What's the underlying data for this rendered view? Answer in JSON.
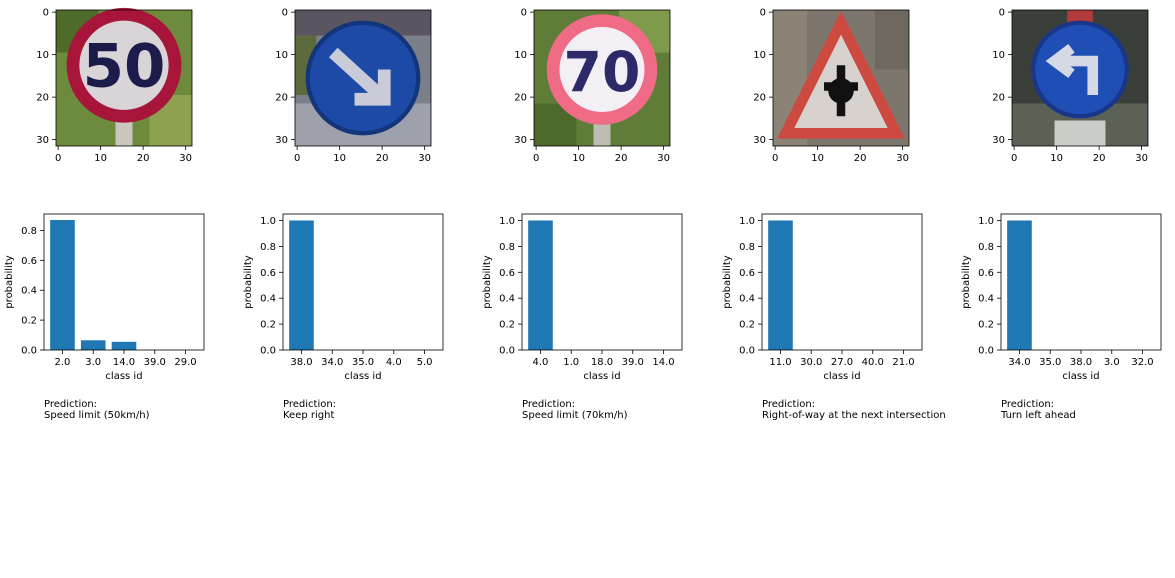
{
  "chart_data": [
    {
      "type": "bar",
      "image": "speed-limit-50-sign",
      "image_axis_ticks": [
        "0",
        "10",
        "20",
        "30"
      ],
      "categories": [
        "2.0",
        "3.0",
        "14.0",
        "39.0",
        "29.0"
      ],
      "values": [
        0.87,
        0.065,
        0.055,
        0.0,
        0.0
      ],
      "ylim": [
        0,
        0.91
      ],
      "yticks": [
        "0.0",
        "0.2",
        "0.4",
        "0.6",
        "0.8"
      ],
      "xlabel": "class id",
      "ylabel": "probability",
      "prediction_label": "Prediction:",
      "prediction": "Speed limit (50km/h)",
      "bar_color": "#1f77b4"
    },
    {
      "type": "bar",
      "image": "keep-right-sign",
      "image_axis_ticks": [
        "0",
        "10",
        "20",
        "30"
      ],
      "categories": [
        "38.0",
        "34.0",
        "35.0",
        "4.0",
        "5.0"
      ],
      "values": [
        1.0,
        0.0,
        0.0,
        0.0,
        0.0
      ],
      "ylim": [
        0,
        1.05
      ],
      "yticks": [
        "0.0",
        "0.2",
        "0.4",
        "0.6",
        "0.8",
        "1.0"
      ],
      "xlabel": "class id",
      "ylabel": "probability",
      "prediction_label": "Prediction:",
      "prediction": "Keep right",
      "bar_color": "#1f77b4"
    },
    {
      "type": "bar",
      "image": "speed-limit-70-sign",
      "image_axis_ticks": [
        "0",
        "10",
        "20",
        "30"
      ],
      "categories": [
        "4.0",
        "1.0",
        "18.0",
        "39.0",
        "14.0"
      ],
      "values": [
        1.0,
        0.0,
        0.0,
        0.0,
        0.0
      ],
      "ylim": [
        0,
        1.05
      ],
      "yticks": [
        "0.0",
        "0.2",
        "0.4",
        "0.6",
        "0.8",
        "1.0"
      ],
      "xlabel": "class id",
      "ylabel": "probability",
      "prediction_label": "Prediction:",
      "prediction": "Speed limit (70km/h)",
      "bar_color": "#1f77b4"
    },
    {
      "type": "bar",
      "image": "right-of-way-triangle-sign",
      "image_axis_ticks": [
        "0",
        "10",
        "20",
        "30"
      ],
      "categories": [
        "11.0",
        "30.0",
        "27.0",
        "40.0",
        "21.0"
      ],
      "values": [
        1.0,
        0.0,
        0.0,
        0.0,
        0.0
      ],
      "ylim": [
        0,
        1.05
      ],
      "yticks": [
        "0.0",
        "0.2",
        "0.4",
        "0.6",
        "0.8",
        "1.0"
      ],
      "xlabel": "class id",
      "ylabel": "probability",
      "prediction_label": "Prediction:",
      "prediction": "Right-of-way at the next intersection",
      "bar_color": "#1f77b4"
    },
    {
      "type": "bar",
      "image": "turn-left-ahead-sign",
      "image_axis_ticks": [
        "0",
        "10",
        "20",
        "30"
      ],
      "categories": [
        "34.0",
        "35.0",
        "38.0",
        "3.0",
        "32.0"
      ],
      "values": [
        1.0,
        0.0,
        0.0,
        0.0,
        0.0
      ],
      "ylim": [
        0,
        1.05
      ],
      "yticks": [
        "0.0",
        "0.2",
        "0.4",
        "0.6",
        "0.8",
        "1.0"
      ],
      "xlabel": "class id",
      "ylabel": "probability",
      "prediction_label": "Prediction:",
      "prediction": "Turn left ahead",
      "bar_color": "#1f77b4"
    }
  ]
}
